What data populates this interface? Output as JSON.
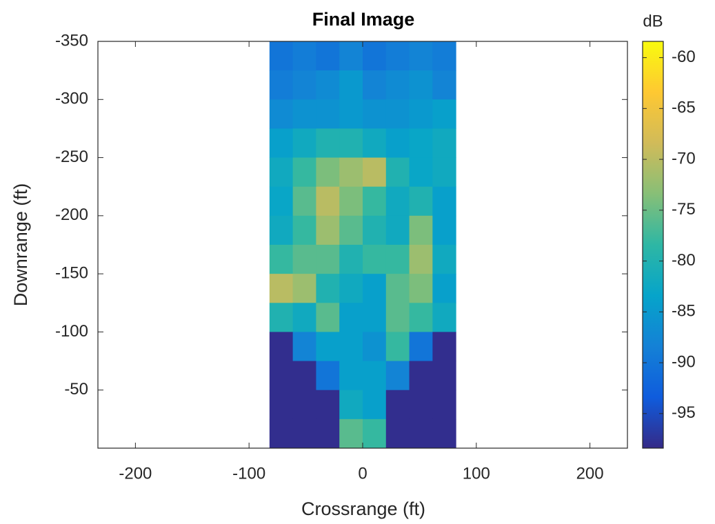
{
  "chart_data": {
    "type": "heatmap",
    "title": "Final Image",
    "x_label": "Crossrange (ft)",
    "y_label": "Downrange (ft)",
    "colorbar_label": "dB",
    "xlim": [
      -233,
      233
    ],
    "xticks": [
      -200,
      -100,
      0,
      100,
      200
    ],
    "ylim": [
      0,
      -350
    ],
    "yticks": [
      -350,
      -300,
      -250,
      -200,
      -150,
      -100,
      -50
    ],
    "clim": [
      -98.4,
      -58.4
    ],
    "cticks": [
      -95,
      -90,
      -85,
      -80,
      -75,
      -70,
      -65,
      -60
    ],
    "colormap": [
      "#352a87",
      "#0f5cdd",
      "#1481d6",
      "#06a4ca",
      "#2eb7a4",
      "#87bf77",
      "#d1bb59",
      "#fec832",
      "#f9fb0e"
    ],
    "x": [
      -71.75,
      -51.25,
      -30.75,
      -10.25,
      10.25,
      30.75,
      51.25,
      71.75
    ],
    "y": [
      -337.5,
      -312.5,
      -287.5,
      -262.5,
      -237.5,
      -212.5,
      -187.5,
      -162.5,
      -137.5,
      -112.5,
      -87.5,
      -62.5,
      -37.5,
      -12.5
    ],
    "z": [
      [
        -90,
        -89,
        -90,
        -88,
        -90,
        -89,
        -88,
        -89
      ],
      [
        -89,
        -88,
        -87,
        -85,
        -88,
        -87,
        -86,
        -88
      ],
      [
        -87,
        -86,
        -86,
        -85,
        -86,
        -86,
        -85,
        -84
      ],
      [
        -84,
        -82,
        -80,
        -80,
        -82,
        -84,
        -83,
        -82
      ],
      [
        -82,
        -78,
        -74,
        -72,
        -70,
        -80,
        -83,
        -82
      ],
      [
        -83,
        -76,
        -70,
        -74,
        -78,
        -82,
        -80,
        -84
      ],
      [
        -82,
        -78,
        -72,
        -76,
        -80,
        -82,
        -74,
        -84
      ],
      [
        -78,
        -76,
        -76,
        -80,
        -78,
        -78,
        -72,
        -82
      ],
      [
        -70,
        -72,
        -80,
        -82,
        -84,
        -76,
        -74,
        -84
      ],
      [
        -80,
        -82,
        -76,
        -84,
        -84,
        -76,
        -78,
        -82
      ],
      [
        -98,
        -88,
        -84,
        -84,
        -86,
        -78,
        -90,
        -98
      ],
      [
        -98,
        -98,
        -90,
        -84,
        -84,
        -88,
        -98,
        -98
      ],
      [
        -98,
        -98,
        -98,
        -82,
        -84,
        -98,
        -98,
        -98
      ],
      [
        -98,
        -98,
        -98,
        -76,
        -78,
        -98,
        -98,
        -98
      ]
    ]
  }
}
